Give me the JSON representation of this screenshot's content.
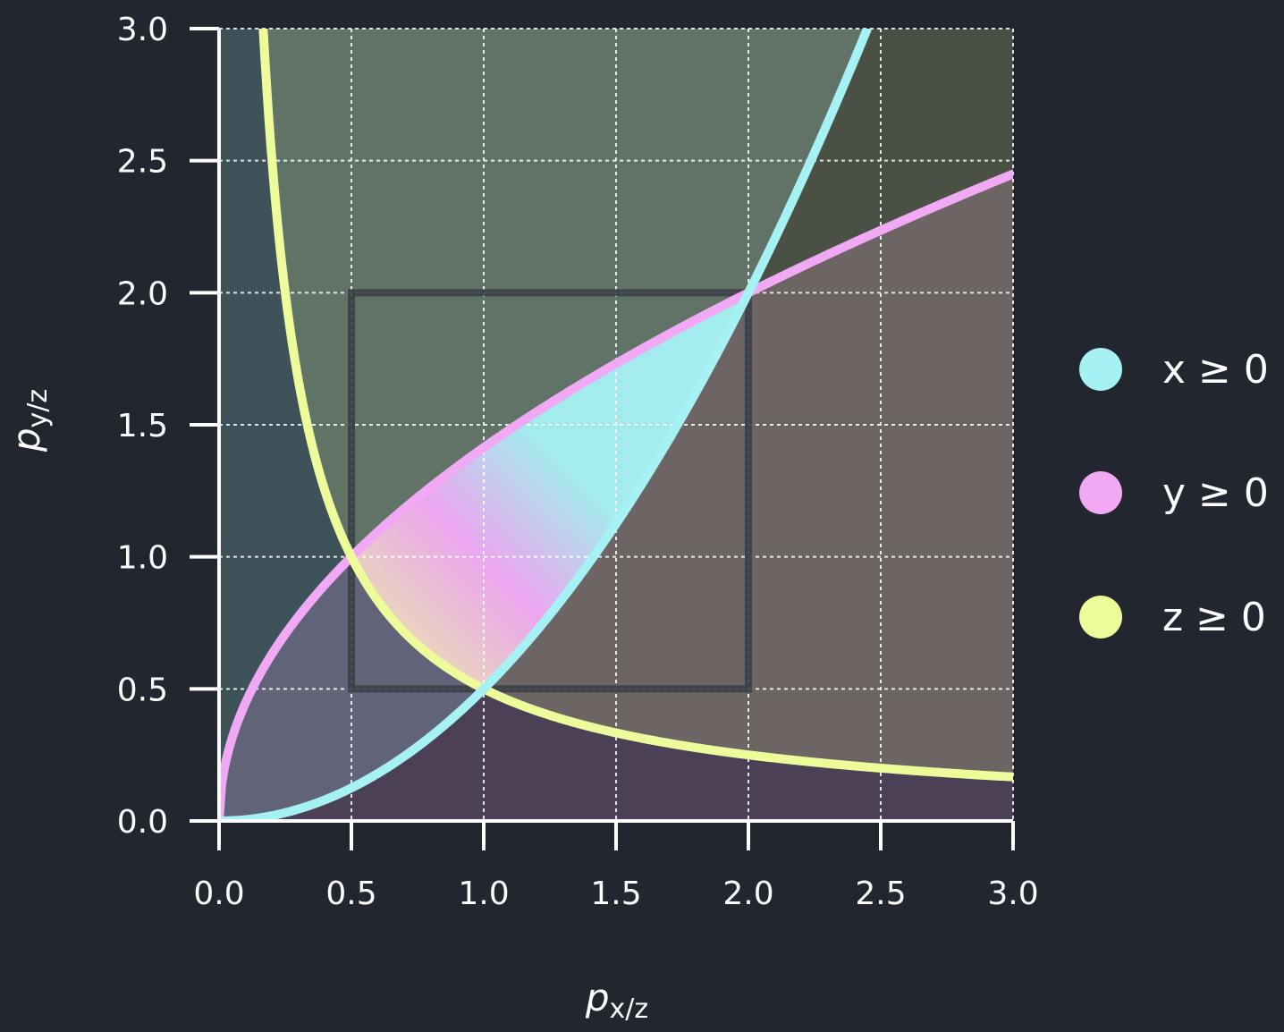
{
  "chart_data": {
    "type": "area",
    "xlabel": {
      "base": "p",
      "sub": "x/z"
    },
    "ylabel": {
      "base": "p",
      "sub": "y/z"
    },
    "xlim": [
      0,
      3
    ],
    "ylim": [
      0,
      3
    ],
    "x_ticks": [
      "0.0",
      "0.5",
      "1.0",
      "1.5",
      "2.0",
      "2.5",
      "3.0"
    ],
    "y_ticks": [
      "0.0",
      "0.5",
      "1.0",
      "1.5",
      "2.0",
      "2.5",
      "3.0"
    ],
    "grid": true,
    "legend_position": "right",
    "series": [
      {
        "name": "x ≥ 0",
        "color": "#a6f1f3",
        "curve": "y = x^2 / 2",
        "x_range": [
          0,
          2.449
        ],
        "shaded_region": "y >= x^2/2"
      },
      {
        "name": "y ≥ 0",
        "color": "#f1a8f5",
        "curve": "y = sqrt(2x)",
        "x_range": [
          0,
          3.0
        ],
        "shaded_region": "y <= sqrt(2x)"
      },
      {
        "name": "z ≥ 0",
        "color": "#eefb9a",
        "curve": "y = 1 / (2x)",
        "x_range": [
          0.1667,
          3.0
        ],
        "shaded_region": "y >= 1/(2x)"
      }
    ],
    "annotations": [
      {
        "type": "rectangle",
        "x_range": [
          0.5,
          2.0
        ],
        "y_range": [
          0.5,
          2.0
        ],
        "color": "#3b3f46"
      }
    ]
  }
}
